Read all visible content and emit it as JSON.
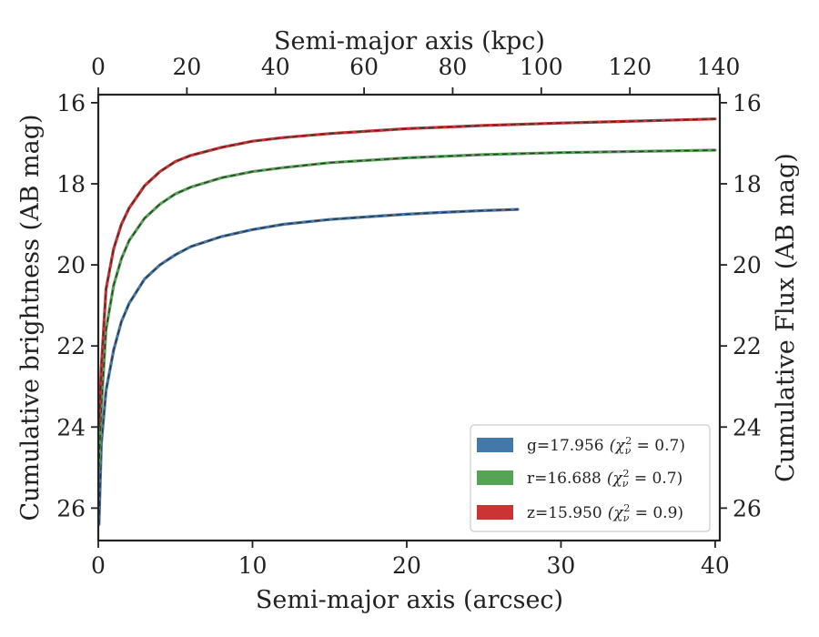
{
  "chart_data": {
    "type": "line",
    "xlabel": "Semi-major axis (arcsec)",
    "ylabel": "Cumulative brightness (AB mag)",
    "x2label": "Semi-major axis (kpc)",
    "y2label": "Cumulative Flux (AB mag)",
    "xlim": [
      0,
      40.3
    ],
    "ylim": [
      26.8,
      15.8
    ],
    "x2lim": [
      0,
      140.3
    ],
    "y_inverted": true,
    "x_ticks": [
      "0",
      "10",
      "20",
      "30",
      "40"
    ],
    "y_ticks": [
      "16",
      "18",
      "20",
      "22",
      "24",
      "26"
    ],
    "x2_ticks": [
      "0",
      "20",
      "40",
      "60",
      "80",
      "100",
      "120",
      "140"
    ],
    "y2_ticks": [
      "16",
      "18",
      "20",
      "22",
      "24",
      "26"
    ],
    "grid": false,
    "legend_placement": "lower right",
    "series": [
      {
        "name": "g=17.956",
        "chi": "(χ",
        "chi_sub": "ν",
        "chi_sup": "2",
        "chi_tail": " = 0.7)",
        "color": "#4477aa",
        "x": [
          0.05,
          0.2,
          0.5,
          1,
          1.5,
          2,
          3,
          4,
          5,
          6,
          8,
          10,
          12,
          15,
          18,
          20,
          22,
          25,
          27.2
        ],
        "y": [
          26.4,
          24.4,
          23.1,
          22.1,
          21.4,
          20.95,
          20.35,
          20.0,
          19.75,
          19.55,
          19.3,
          19.13,
          19.0,
          18.88,
          18.8,
          18.75,
          18.71,
          18.66,
          18.63
        ]
      },
      {
        "name": "r=16.688",
        "chi": "(χ",
        "chi_sub": "ν",
        "chi_sup": "2",
        "chi_tail": " = 0.7)",
        "color": "#55a355",
        "x": [
          0.05,
          0.2,
          0.5,
          1,
          1.5,
          2,
          3,
          4,
          5,
          6,
          8,
          10,
          12,
          15,
          20,
          25,
          30,
          35,
          40
        ],
        "y": [
          25.0,
          23.5,
          21.6,
          20.5,
          19.85,
          19.4,
          18.85,
          18.5,
          18.25,
          18.08,
          17.85,
          17.7,
          17.6,
          17.48,
          17.36,
          17.28,
          17.23,
          17.2,
          17.17
        ]
      },
      {
        "name": "z=15.950",
        "chi": "(χ",
        "chi_sub": "ν",
        "chi_sup": "2",
        "chi_tail": " = 0.9)",
        "color": "#cc3333",
        "x": [
          0.05,
          0.2,
          0.5,
          1,
          1.5,
          2,
          3,
          4,
          5,
          6,
          8,
          10,
          12,
          15,
          20,
          25,
          30,
          35,
          40
        ],
        "y": [
          24.0,
          22.5,
          20.6,
          19.6,
          19.0,
          18.6,
          18.05,
          17.7,
          17.45,
          17.3,
          17.1,
          16.95,
          16.86,
          16.76,
          16.64,
          16.56,
          16.5,
          16.45,
          16.4
        ]
      }
    ]
  }
}
